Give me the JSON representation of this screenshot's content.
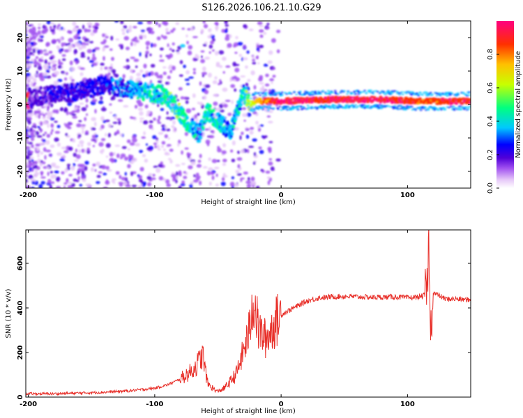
{
  "title": "S126.2026.106.21.10.G29",
  "colors": {
    "background": "#ffffff",
    "snr_line": "#e8302a",
    "axis": "#000000",
    "colormap": [
      "#ffffff",
      "#e6c8f8",
      "#a050f0",
      "#5000d8",
      "#0000ff",
      "#00c8ff",
      "#00ff80",
      "#c8ff00",
      "#ffc000",
      "#ff3000",
      "#ff0080"
    ]
  },
  "chart_data": [
    {
      "type": "heatmap",
      "title": "S126.2026.106.21.10.G29",
      "xlabel": "Height of straight line (km)",
      "ylabel": "Frequency (Hz)",
      "xlim": [
        -202,
        150
      ],
      "ylim": [
        -25,
        25
      ],
      "x_ticks": [
        -200,
        -100,
        0,
        100
      ],
      "y_ticks": [
        20,
        10,
        0,
        -10,
        -20
      ],
      "x_tick_labels": [
        "-200",
        "-100",
        "0",
        "100"
      ],
      "y_tick_labels": [
        "20",
        "10",
        "0",
        "-10",
        "-20"
      ],
      "colorbar": {
        "label": "Normalized spectral amplitude",
        "range": [
          0.0,
          1.0
        ],
        "ticks": [
          0.0,
          0.2,
          0.4,
          0.6,
          0.8
        ],
        "tick_labels": [
          "0.0",
          "0.2",
          "0.4",
          "0.6",
          "0.8"
        ]
      },
      "ridge": [
        {
          "x": -200,
          "f": 2,
          "a": 0.15
        },
        {
          "x": -180,
          "f": 3,
          "a": 0.18
        },
        {
          "x": -160,
          "f": 4,
          "a": 0.2
        },
        {
          "x": -140,
          "f": 6,
          "a": 0.22
        },
        {
          "x": -125,
          "f": 5,
          "a": 0.25
        },
        {
          "x": -110,
          "f": 4,
          "a": 0.35
        },
        {
          "x": -95,
          "f": 3,
          "a": 0.4
        },
        {
          "x": -85,
          "f": 0,
          "a": 0.45
        },
        {
          "x": -75,
          "f": -5,
          "a": 0.4
        },
        {
          "x": -65,
          "f": -9,
          "a": 0.3
        },
        {
          "x": -58,
          "f": -2,
          "a": 0.4
        },
        {
          "x": -50,
          "f": -5,
          "a": 0.35
        },
        {
          "x": -40,
          "f": -8,
          "a": 0.3
        },
        {
          "x": -35,
          "f": -3,
          "a": 0.4
        },
        {
          "x": -30,
          "f": 4,
          "a": 0.35
        },
        {
          "x": -25,
          "f": 0,
          "a": 0.55
        },
        {
          "x": -20,
          "f": 1,
          "a": 0.7
        },
        {
          "x": 0,
          "f": 1,
          "a": 0.95
        },
        {
          "x": 40,
          "f": 1.5,
          "a": 0.9
        },
        {
          "x": 80,
          "f": 1.5,
          "a": 0.95
        },
        {
          "x": 110,
          "f": 1,
          "a": 0.85
        },
        {
          "x": 150,
          "f": 1,
          "a": 0.9
        }
      ]
    },
    {
      "type": "line",
      "xlabel": "Height of straight line (km)",
      "ylabel": "SNR (10 * v/v)",
      "xlim": [
        -202,
        150
      ],
      "ylim": [
        0,
        750
      ],
      "x_ticks": [
        -200,
        -100,
        0,
        100
      ],
      "y_ticks": [
        0,
        200,
        400,
        600
      ],
      "x_tick_labels": [
        "-200",
        "-100",
        "0",
        "100"
      ],
      "y_tick_labels": [
        "0",
        "200",
        "400",
        "600"
      ],
      "series": [
        {
          "x": [
            -202,
            -180,
            -160,
            -140,
            -120,
            -100,
            -90,
            -80,
            -70,
            -65,
            -62,
            -60,
            -58,
            -55,
            -52,
            -50,
            -45,
            -40,
            -35,
            -30,
            -25,
            -22,
            -20,
            -18,
            -15,
            -12,
            -10,
            -5,
            0,
            10,
            20,
            30,
            40,
            50,
            60,
            70,
            80,
            90,
            100,
            110,
            115,
            116,
            117,
            118,
            120,
            130,
            140,
            150
          ],
          "y": [
            15,
            15,
            18,
            22,
            28,
            40,
            55,
            80,
            120,
            160,
            190,
            120,
            60,
            45,
            30,
            25,
            40,
            70,
            110,
            200,
            300,
            450,
            380,
            300,
            280,
            260,
            280,
            330,
            370,
            400,
            430,
            445,
            450,
            452,
            450,
            448,
            448,
            450,
            445,
            450,
            460,
            520,
            740,
            240,
            470,
            440,
            440,
            435
          ]
        }
      ]
    }
  ]
}
